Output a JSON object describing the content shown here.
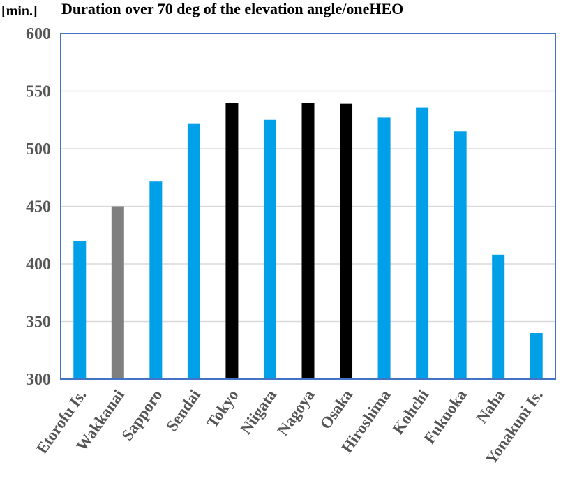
{
  "chart_data": {
    "type": "bar",
    "title": "Duration over 70 deg of the elevation angle/oneHEO",
    "ylabel": "[min.]",
    "xlabel": "",
    "ylim": [
      300,
      600
    ],
    "yticks": [
      300,
      350,
      400,
      450,
      500,
      550,
      600
    ],
    "categories": [
      "Etorofu Is.",
      "Wakkanai",
      "Sapporo",
      "Sendai",
      "Tokyo",
      "Niigata",
      "Nagoya",
      "Osaka",
      "Hiroshima",
      "Kohchi",
      "Fukuoka",
      "Naha",
      "Yonakuni Is."
    ],
    "values": [
      420,
      450,
      472,
      522,
      540,
      525,
      540,
      539,
      527,
      536,
      515,
      408,
      340
    ],
    "bar_colors": [
      "#00a0e9",
      "#7f7f7f",
      "#00a0e9",
      "#00a0e9",
      "#000000",
      "#00a0e9",
      "#000000",
      "#000000",
      "#00a0e9",
      "#00a0e9",
      "#00a0e9",
      "#00a0e9",
      "#00a0e9"
    ],
    "grid": true,
    "legend": "none"
  },
  "colors": {
    "frame": "#4472c4",
    "grid": "#d9d9d9",
    "tick_text": "#555555"
  }
}
